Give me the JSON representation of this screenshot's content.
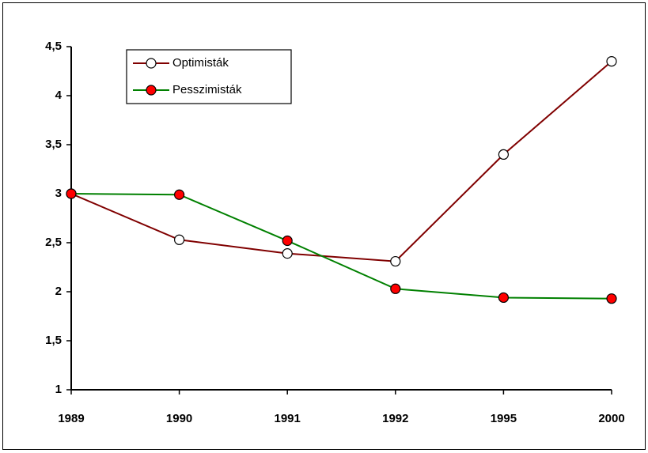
{
  "chart_data": {
    "type": "line",
    "categories": [
      "1989",
      "1990",
      "1991",
      "1992",
      "1995",
      "2000"
    ],
    "series": [
      {
        "name": "Optimisták",
        "color": "#800000",
        "marker_color": "#ffffff",
        "values": [
          3.0,
          2.53,
          2.39,
          2.31,
          3.4,
          4.35
        ]
      },
      {
        "name": "Pesszimisták",
        "color": "#008000",
        "marker_color": "#ff0000",
        "values": [
          3.0,
          2.99,
          2.52,
          2.03,
          1.94,
          1.93
        ]
      }
    ],
    "ylim": [
      1,
      4.5
    ],
    "yticks": [
      1,
      {
        "value": 1.5,
        "label": "1,5"
      },
      2,
      {
        "value": 2.5,
        "label": "2,5"
      },
      3,
      {
        "value": 3.5,
        "label": "3,5"
      },
      4,
      {
        "value": 4.5,
        "label": "4,5"
      }
    ],
    "grid": false,
    "legend": "upper left"
  }
}
